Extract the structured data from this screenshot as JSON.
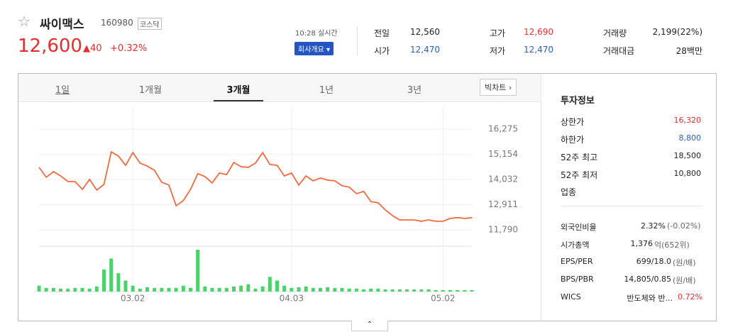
{
  "header": {
    "name": "싸이맥스",
    "code": "160980",
    "market": "코스닥",
    "price": "12,600",
    "change": "40",
    "change_pct": "+0.32%",
    "time": "10:28 실시간",
    "company_button": "회사개요"
  },
  "quote": {
    "rows": [
      [
        "전일",
        "12,560",
        "고가",
        "12,690",
        "거래량",
        "2,199(22%)"
      ],
      [
        "시가",
        "12,470",
        "저가",
        "12,470",
        "거래대금",
        "28백만"
      ]
    ]
  },
  "tabs": [
    "1일",
    "1개월",
    "3개월",
    "1년",
    "3년"
  ],
  "active_tab": 2,
  "big_chart": "빅차트",
  "chart_data": {
    "type": "line",
    "color": "#f26a3f",
    "volume_color": "#4cd26b",
    "grid": true,
    "categories": [
      null,
      null,
      null,
      null,
      null,
      null,
      null,
      null,
      null,
      null,
      null,
      null,
      null,
      "03.02",
      null,
      null,
      null,
      null,
      null,
      null,
      null,
      null,
      null,
      null,
      null,
      null,
      null,
      null,
      null,
      null,
      null,
      null,
      null,
      null,
      null,
      "04.03",
      null,
      null,
      null,
      null,
      null,
      null,
      null,
      null,
      null,
      null,
      null,
      null,
      null,
      null,
      null,
      null,
      null,
      null,
      null,
      null,
      "05.02",
      null,
      null,
      null,
      null
    ],
    "values": [
      14570,
      14130,
      14380,
      14190,
      13940,
      13940,
      13590,
      14030,
      13560,
      13810,
      15260,
      15080,
      14660,
      15230,
      14760,
      14630,
      14440,
      13910,
      13780,
      12860,
      13090,
      13590,
      14290,
      14160,
      13880,
      14320,
      14250,
      14790,
      14600,
      14570,
      14760,
      15230,
      14700,
      14660,
      14190,
      14320,
      13780,
      14190,
      13970,
      14100,
      14000,
      13970,
      13750,
      13690,
      13400,
      13500,
      13050,
      12990,
      12680,
      12420,
      12230,
      12230,
      12230,
      12170,
      12230,
      12170,
      12170,
      12300,
      12330,
      12300,
      12330
    ],
    "volume": [
      8,
      5,
      5,
      4,
      4,
      5,
      5,
      4,
      7,
      30,
      45,
      25,
      15,
      8,
      4,
      6,
      5,
      5,
      5,
      5,
      8,
      5,
      57,
      7,
      5,
      5,
      5,
      7,
      8,
      10,
      4,
      7,
      20,
      15,
      8,
      5,
      6,
      7,
      5,
      5,
      6,
      5,
      5,
      4,
      4,
      3,
      4,
      4,
      3,
      3,
      3,
      3,
      3,
      3,
      3,
      2,
      2,
      2,
      2,
      2,
      2
    ],
    "ylim": [
      11440,
      16970
    ],
    "yticks": [
      {
        "value": 16275,
        "label": "16,275"
      },
      {
        "value": 15154,
        "label": "15,154"
      },
      {
        "value": 14032,
        "label": "14,032"
      },
      {
        "value": 12911,
        "label": "12,911"
      },
      {
        "value": 11790,
        "label": "11,790"
      }
    ]
  },
  "info": {
    "title": "투자정보",
    "rows": [
      [
        "상한가",
        "16,320"
      ],
      [
        "하한가",
        "8,800"
      ],
      [
        "52주 최고",
        "18,500"
      ],
      [
        "52주 최저",
        "10,800"
      ]
    ],
    "sector": "업종",
    "rows2": [
      [
        "외국인비율",
        "2.32%",
        "(-0.02%)"
      ],
      [
        "시가총액",
        "1,376",
        "억(652위)"
      ],
      [
        "EPS/PER",
        "699/18.0",
        "(원/배)"
      ],
      [
        "BPS/PBR",
        "14,805/0.85",
        "(원/배)"
      ],
      [
        "WICS",
        "반도체와 반...",
        "0.72%"
      ]
    ]
  }
}
